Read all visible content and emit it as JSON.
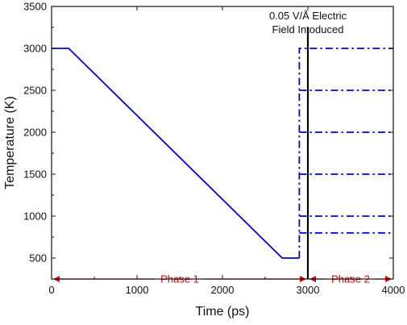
{
  "chart_data": {
    "type": "line",
    "xlabel": "Time (ps)",
    "ylabel": "Temperature (K)",
    "xlim": [
      0,
      4000
    ],
    "ylim": [
      250,
      3500
    ],
    "x_ticks": [
      0,
      1000,
      2000,
      3000,
      4000
    ],
    "y_ticks": [
      500,
      1000,
      1500,
      2000,
      2500,
      3000,
      3500
    ],
    "grid": false,
    "colors": {
      "series": "#0000dd",
      "phase": "#e00000",
      "field_line": "#000000",
      "axes": "#111111"
    },
    "series": [
      {
        "style": "solid",
        "x": [
          0,
          200,
          2700,
          2900
        ],
        "y": [
          3000,
          3000,
          500,
          500
        ]
      },
      {
        "style": "dash-dot",
        "x": [
          2900,
          2900,
          4000
        ],
        "y": [
          500,
          3000,
          3000
        ]
      },
      {
        "style": "dash-dot",
        "x": [
          2900,
          4000
        ],
        "y": [
          2500,
          2500
        ]
      },
      {
        "style": "dash-dot",
        "x": [
          2900,
          4000
        ],
        "y": [
          2000,
          2000
        ]
      },
      {
        "style": "dash-dot",
        "x": [
          2900,
          4000
        ],
        "y": [
          1500,
          1500
        ]
      },
      {
        "style": "dash-dot",
        "x": [
          2900,
          4000
        ],
        "y": [
          1000,
          1000
        ]
      },
      {
        "style": "dash-dot",
        "x": [
          2900,
          4000
        ],
        "y": [
          800,
          800
        ]
      }
    ],
    "annotations": {
      "field_x": 3000,
      "field_text_line1": "0.05 V/Å Electric",
      "field_text_line2": "Field Intoduced",
      "phases": [
        {
          "label": "Phase 1",
          "x_start": 0,
          "x_end": 3000,
          "y": 250
        },
        {
          "label": "Phase 2",
          "x_start": 3000,
          "x_end": 4000,
          "y": 250
        }
      ]
    }
  }
}
